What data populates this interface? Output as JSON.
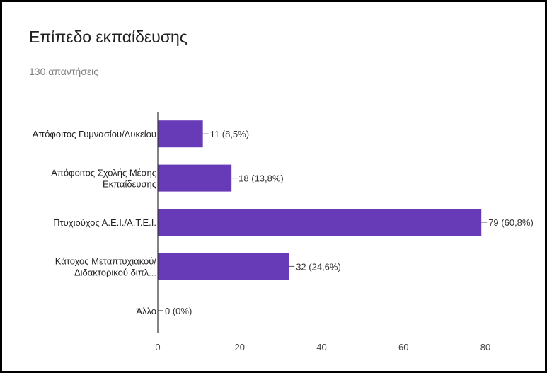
{
  "chart_data": {
    "type": "bar",
    "orientation": "horizontal",
    "title": "Επίπεδο εκπαίδευσης",
    "subtitle": "130 απαντήσεις",
    "categories": [
      [
        "Απόφοιτος Γυμνασίου/Λυκείου"
      ],
      [
        "Απόφοιτος Σχολής Μέσης",
        "Εκπαίδευσης"
      ],
      [
        "Πτυχιούχος Α.Ε.Ι./Α.Τ.Ε.Ι."
      ],
      [
        "Κάτοχος Μεταπτυχιακού/",
        "Διδακτορικού διπλ..."
      ],
      [
        "Άλλο"
      ]
    ],
    "values": [
      11,
      18,
      79,
      32,
      0
    ],
    "value_labels": [
      "11 (8,5%)",
      "18 (13,8%)",
      "79 (60,8%)",
      "32 (24,6%)",
      "0 (0%)"
    ],
    "xlim": [
      0,
      80
    ],
    "xticks": [
      0,
      20,
      40,
      60,
      80
    ],
    "grid": false,
    "bar_color": "#673ab7"
  }
}
